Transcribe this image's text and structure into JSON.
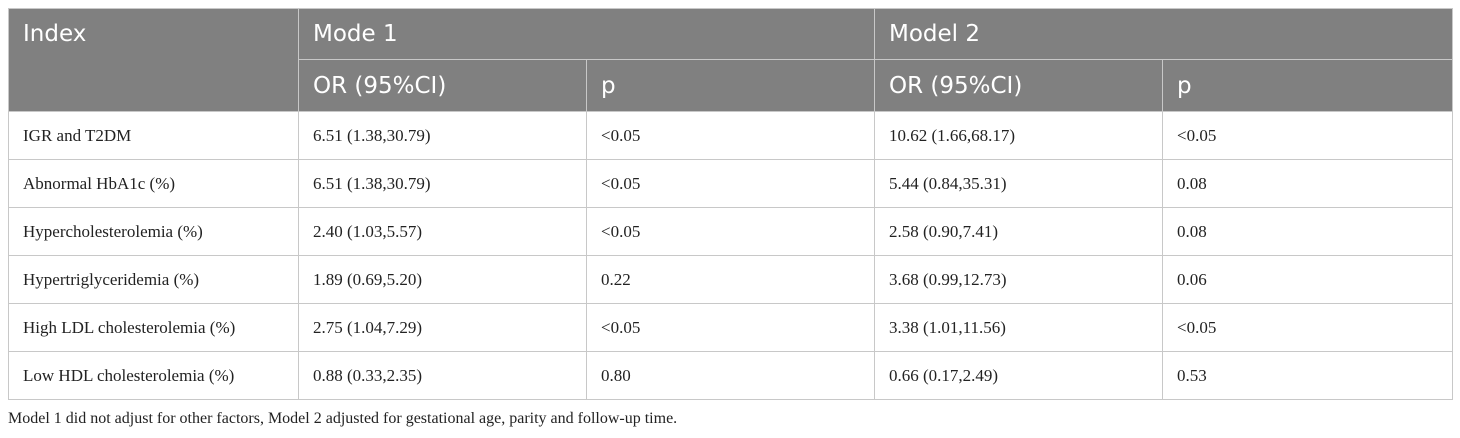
{
  "table": {
    "header": {
      "index": "Index",
      "model1": "Mode 1",
      "model2": "Model 2",
      "or_label": "OR (95%CI)",
      "p_label": "p"
    },
    "rows": [
      {
        "index": "IGR and T2DM",
        "m1_or": "6.51 (1.38,30.79)",
        "m1_p": "<0.05",
        "m2_or": "10.62 (1.66,68.17)",
        "m2_p": "<0.05"
      },
      {
        "index": "Abnormal HbA1c (%)",
        "m1_or": "6.51 (1.38,30.79)",
        "m1_p": "<0.05",
        "m2_or": "5.44 (0.84,35.31)",
        "m2_p": "0.08"
      },
      {
        "index": "Hypercholesterolemia (%)",
        "m1_or": "2.40 (1.03,5.57)",
        "m1_p": "<0.05",
        "m2_or": "2.58 (0.90,7.41)",
        "m2_p": "0.08"
      },
      {
        "index": "Hypertriglyceridemia (%)",
        "m1_or": "1.89 (0.69,5.20)",
        "m1_p": "0.22",
        "m2_or": "3.68 (0.99,12.73)",
        "m2_p": "0.06"
      },
      {
        "index": "High LDL cholesterolemia (%)",
        "m1_or": "2.75 (1.04,7.29)",
        "m1_p": "<0.05",
        "m2_or": "3.38 (1.01,11.56)",
        "m2_p": "<0.05"
      },
      {
        "index": "Low HDL cholesterolemia (%)",
        "m1_or": "0.88 (0.33,2.35)",
        "m1_p": "0.80",
        "m2_or": "0.66 (0.17,2.49)",
        "m2_p": "0.53"
      }
    ]
  },
  "footnote": "Model 1 did not adjust for other factors, Model 2 adjusted for gestational age, parity and follow-up time.",
  "colors": {
    "header_bg": "#808080",
    "header_text": "#ffffff",
    "grid_line": "#c8c8c8",
    "body_text": "#222222"
  }
}
